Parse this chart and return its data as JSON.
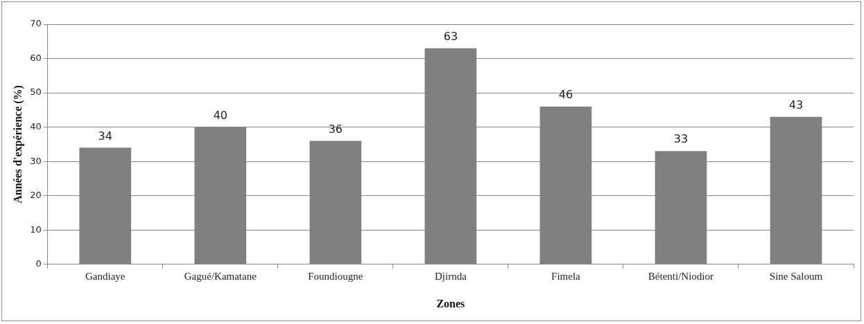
{
  "chart_data": {
    "type": "bar",
    "xlabel": "Zones",
    "ylabel": "Années d'expérience (%)",
    "categories": [
      "Gandiaye",
      "Gagué/Kamatane",
      "Foundiougne",
      "Djirnda",
      "Fimela",
      "Bétenti/Niodior",
      "Sine Saloum"
    ],
    "values": [
      34,
      40,
      36,
      63,
      46,
      33,
      43
    ],
    "color": "#808080",
    "ylim": [
      0,
      70
    ],
    "yticks": [
      0,
      10,
      20,
      30,
      40,
      50,
      60,
      70
    ],
    "grid": "y",
    "data_labels": true
  }
}
